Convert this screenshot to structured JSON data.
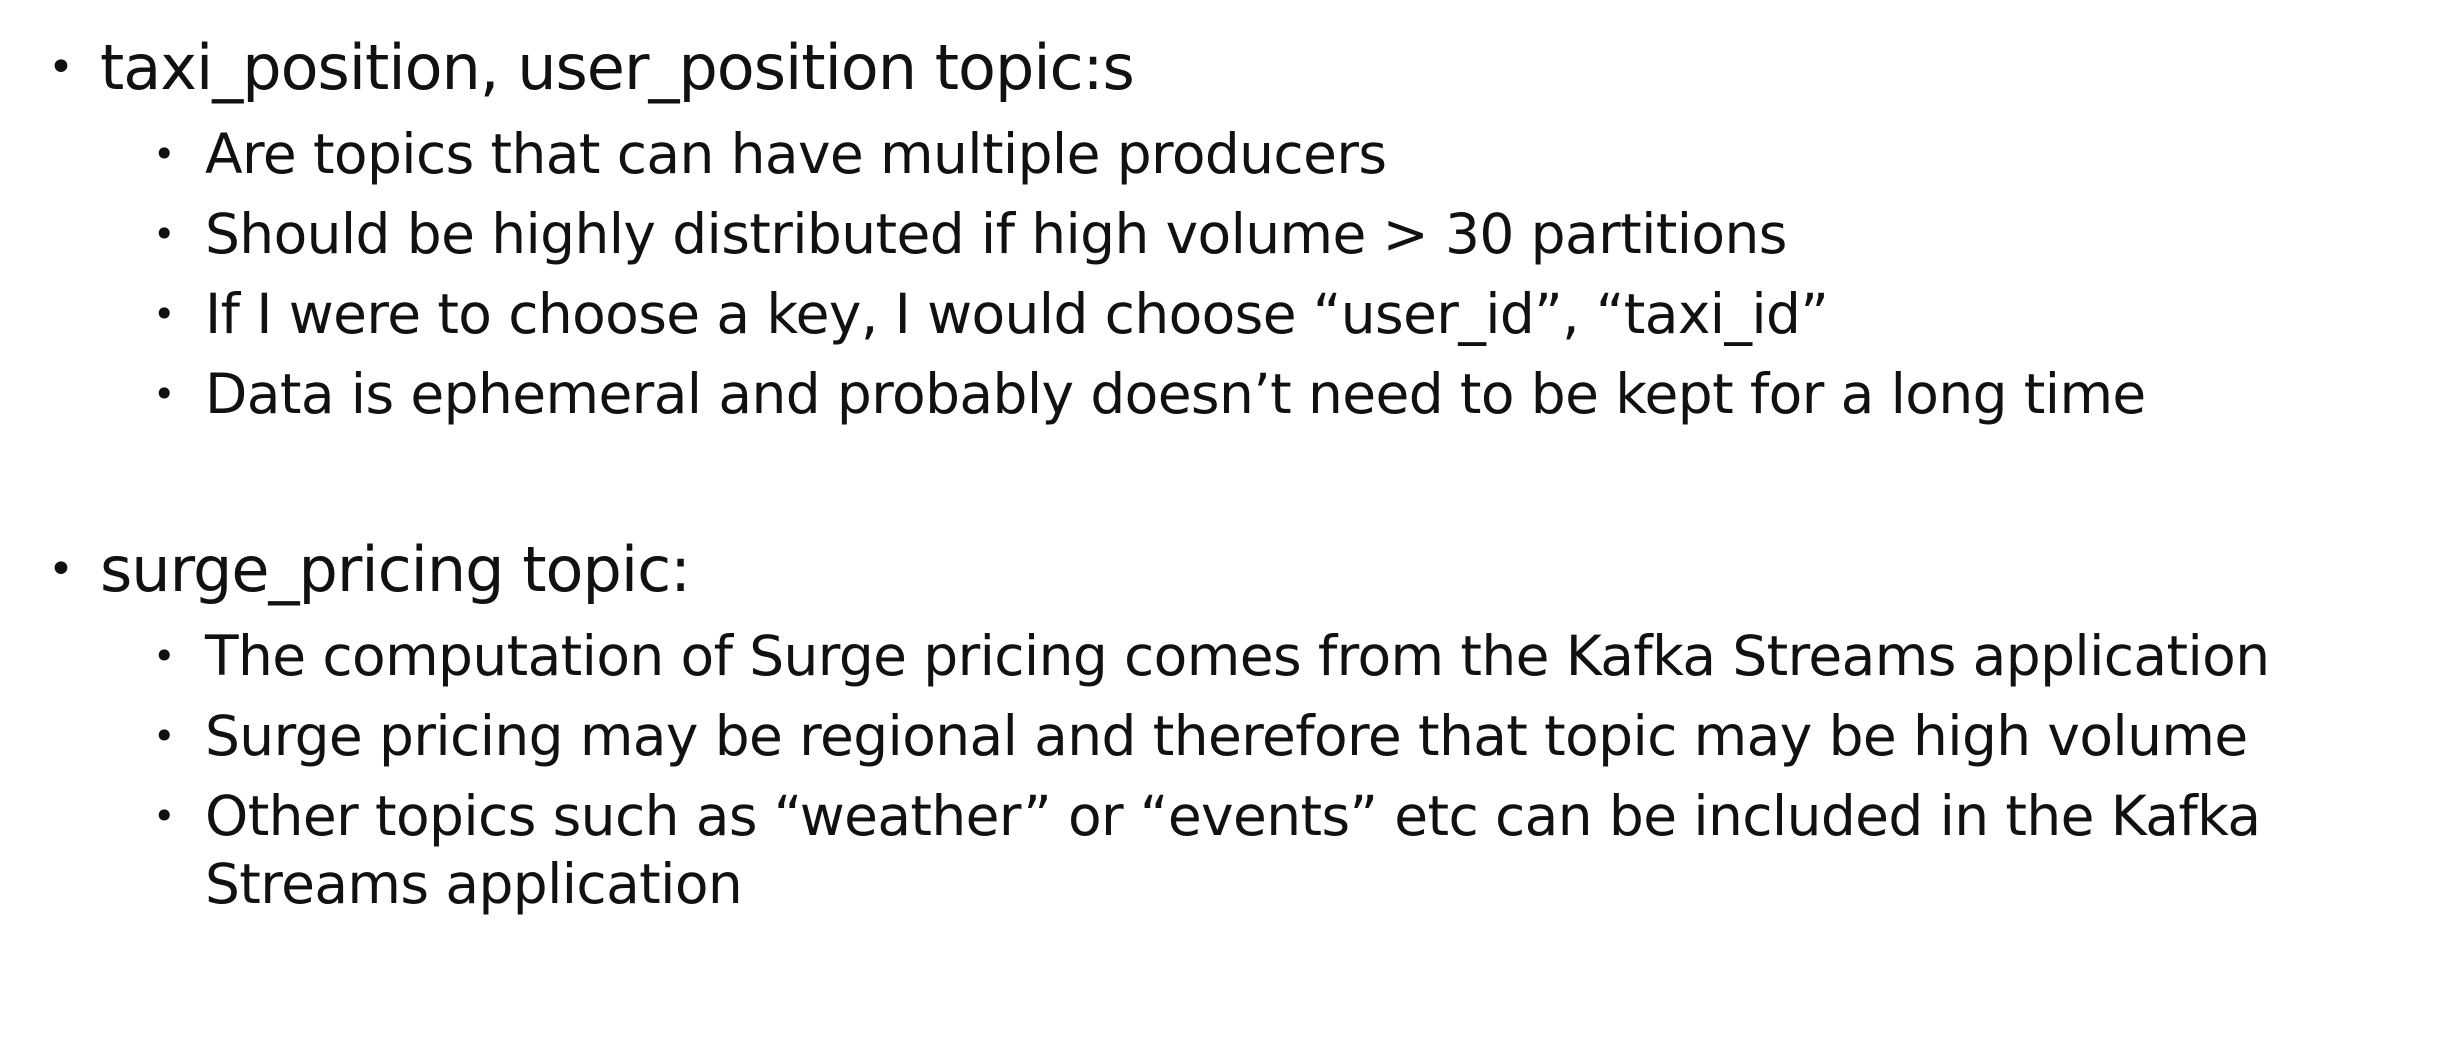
{
  "sections": [
    {
      "heading": "taxi_position, user_position topic:s",
      "items": [
        "Are topics that can have multiple producers",
        "Should be highly distributed if high volume > 30 partitions",
        "If I were to choose a key, I would choose “user_id”, “taxi_id”",
        "Data is ephemeral and probably doesn’t need to be kept for a long time"
      ]
    },
    {
      "heading": "surge_pricing topic:",
      "items": [
        "The computation of Surge pricing comes from the Kafka Streams application",
        "Surge pricing may be regional and therefore that topic may be high volume",
        "Other topics such as “weather” or “events” etc can be included in the Kafka Streams application"
      ]
    }
  ],
  "bullet_glyph": "•"
}
